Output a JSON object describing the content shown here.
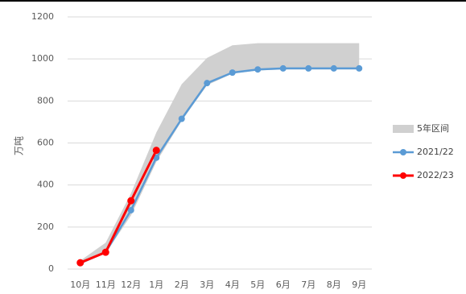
{
  "chart_data": {
    "type": "line",
    "title": "",
    "xlabel": "",
    "ylabel": "万吨",
    "ylim": [
      0,
      1200
    ],
    "yticks": [
      0,
      200,
      400,
      600,
      800,
      1000,
      1200
    ],
    "grid": true,
    "legend_position": "right",
    "categories": [
      "10月",
      "11月",
      "12月",
      "1月",
      "2月",
      "3月",
      "4月",
      "5月",
      "6月",
      "7月",
      "8月",
      "9月"
    ],
    "band": {
      "name": "5年区间",
      "color": "#d0d0d0",
      "lower": [
        25,
        75,
        255,
        510,
        705,
        875,
        930,
        945,
        950,
        950,
        950,
        950
      ],
      "upper": [
        40,
        125,
        360,
        650,
        880,
        1005,
        1065,
        1075,
        1075,
        1075,
        1075,
        1075
      ]
    },
    "series": [
      {
        "name": "2021/22",
        "color": "#5b9bd5",
        "values": [
          28,
          80,
          280,
          530,
          715,
          885,
          935,
          950,
          955,
          955,
          955,
          955
        ]
      },
      {
        "name": "2022/23",
        "color": "#ff0000",
        "values": [
          30,
          80,
          325,
          565,
          null,
          null,
          null,
          null,
          null,
          null,
          null,
          null
        ]
      }
    ]
  }
}
